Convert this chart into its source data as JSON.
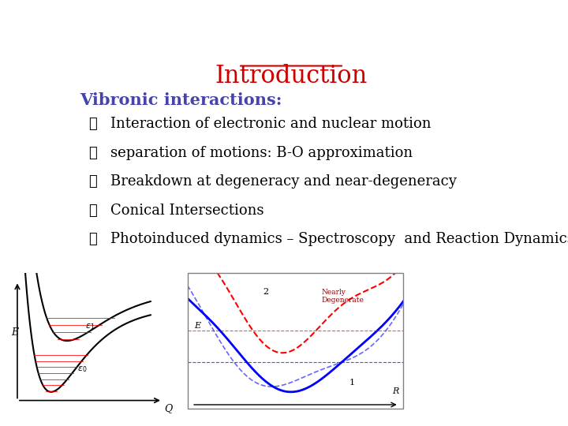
{
  "title": "Introduction",
  "title_color": "#cc0000",
  "title_underline": true,
  "title_fontsize": 22,
  "subtitle": "Vibronic interactions:",
  "subtitle_color": "#4444aa",
  "subtitle_fontsize": 15,
  "bullet_symbol": "❖",
  "bullet_items": [
    "Interaction of electronic and nuclear motion",
    "separation of motions: B-O approximation",
    "Breakdown at degeneracy and near-degeneracy",
    "Conical Intersections",
    "Photoinduced dynamics – Spectroscopy  and Reaction Dynamics"
  ],
  "bullet_fontsize": 13,
  "bullet_color": "#000000",
  "background_color": "#ffffff"
}
